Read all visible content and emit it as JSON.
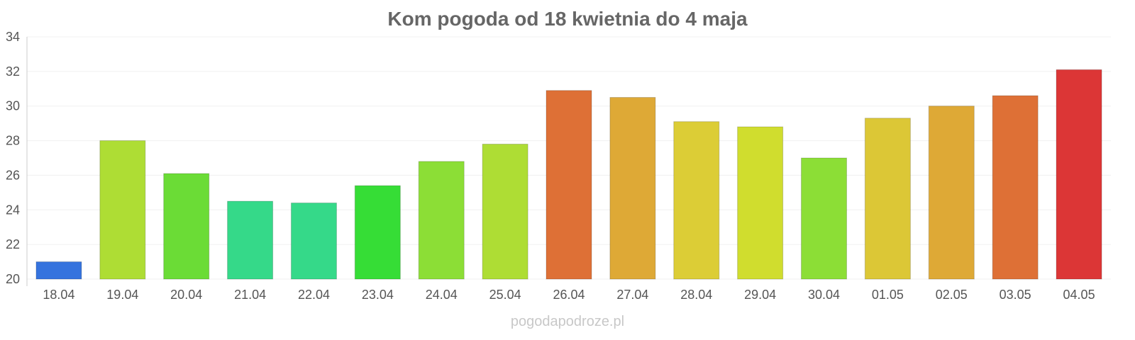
{
  "chart_data": {
    "type": "bar",
    "title": "Kom pogoda od 18 kwietnia do 4 maja",
    "xlabel": "",
    "ylabel": "",
    "ylim": [
      20,
      34
    ],
    "yticks": [
      "20",
      "22",
      "24",
      "26",
      "28",
      "30",
      "32",
      "34"
    ],
    "grid": true,
    "categories": [
      "18.04",
      "19.04",
      "20.04",
      "21.04",
      "22.04",
      "23.04",
      "24.04",
      "25.04",
      "26.04",
      "27.04",
      "28.04",
      "29.04",
      "30.04",
      "01.05",
      "02.05",
      "03.05",
      "04.05"
    ],
    "values": [
      21.0,
      28.0,
      26.1,
      24.5,
      24.4,
      25.4,
      26.8,
      27.8,
      30.9,
      30.5,
      29.1,
      28.8,
      27.0,
      29.3,
      30.0,
      30.6,
      32.1
    ],
    "colors": [
      "#3573de",
      "#aedd34",
      "#6bdc36",
      "#35d989",
      "#35d989",
      "#36dd36",
      "#8cde36",
      "#aedd34",
      "#de7036",
      "#dea936",
      "#dccd36",
      "#d0dd2e",
      "#8cde36",
      "#dcc736",
      "#dea936",
      "#de7036",
      "#dc3636"
    ]
  },
  "watermark": "pogodapodroze.pl"
}
